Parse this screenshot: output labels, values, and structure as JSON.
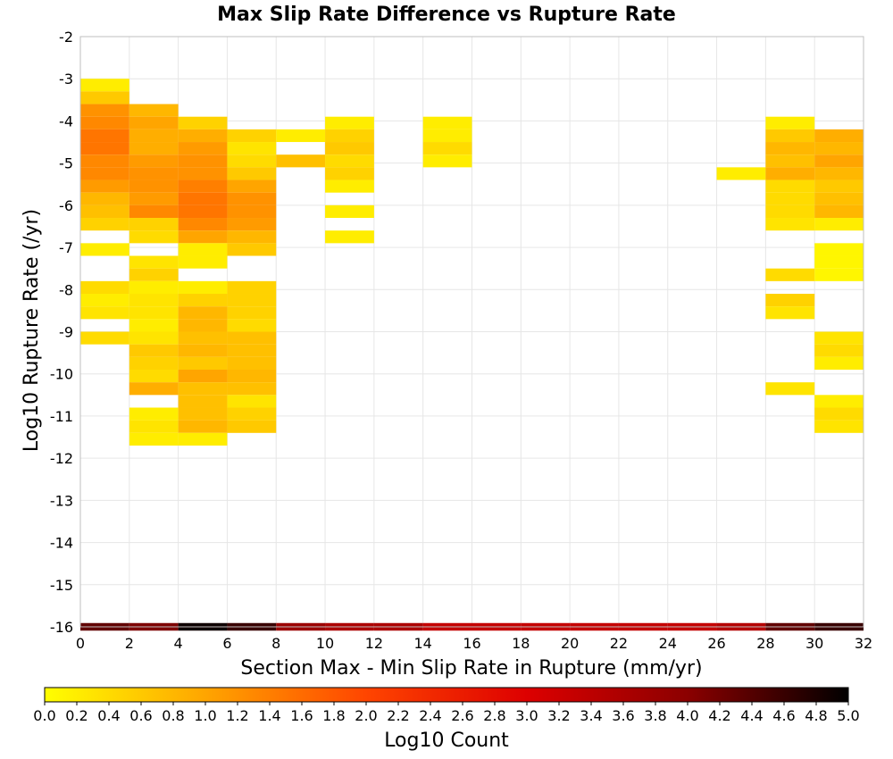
{
  "chart_data": {
    "type": "heatmap",
    "title": "Max Slip Rate Difference vs Rupture Rate",
    "xlabel": "Section Max - Min Slip Rate in Rupture (mm/yr)",
    "ylabel": "Log10 Rupture Rate (/yr)",
    "xlim": [
      0,
      32
    ],
    "ylim": [
      -16,
      -2
    ],
    "x_ticks": [
      "0",
      "2",
      "4",
      "6",
      "8",
      "10",
      "12",
      "14",
      "16",
      "18",
      "20",
      "22",
      "24",
      "26",
      "28",
      "30",
      "32"
    ],
    "y_ticks": [
      "-2",
      "-3",
      "-4",
      "-5",
      "-6",
      "-7",
      "-8",
      "-9",
      "-10",
      "-11",
      "-12",
      "-13",
      "-14",
      "-15",
      "-16"
    ],
    "x_bin_width": 2,
    "y_bin_height": 0.3,
    "grid": true,
    "colorbar": {
      "label": "Log10 Count",
      "range": [
        0,
        5
      ],
      "tick_labels": [
        "0.0",
        "0.2",
        "0.4",
        "0.6",
        "0.8",
        "1.0",
        "1.2",
        "1.4",
        "1.6",
        "1.8",
        "2.0",
        "2.2",
        "2.4",
        "2.6",
        "2.8",
        "3.0",
        "3.2",
        "3.4",
        "3.6",
        "3.8",
        "4.0",
        "4.2",
        "4.4",
        "4.6",
        "4.8",
        "5.0"
      ],
      "colors": [
        "#ffff00",
        "#ffa500",
        "#ff4500",
        "#dd0000",
        "#8b0000",
        "#000000"
      ],
      "placement": "bottom"
    },
    "cells": [
      {
        "x": 0,
        "y": -3.15,
        "v": 0.2
      },
      {
        "x": 0,
        "y": -3.45,
        "v": 0.6
      },
      {
        "x": 0,
        "y": -3.75,
        "v": 1.2
      },
      {
        "x": 0,
        "y": -4.05,
        "v": 1.3
      },
      {
        "x": 0,
        "y": -4.35,
        "v": 1.5
      },
      {
        "x": 0,
        "y": -4.65,
        "v": 1.5
      },
      {
        "x": 0,
        "y": -4.95,
        "v": 1.3
      },
      {
        "x": 0,
        "y": -5.25,
        "v": 1.3
      },
      {
        "x": 0,
        "y": -5.55,
        "v": 1.1
      },
      {
        "x": 0,
        "y": -5.85,
        "v": 0.8
      },
      {
        "x": 0,
        "y": -6.15,
        "v": 0.7
      },
      {
        "x": 0,
        "y": -6.45,
        "v": 0.5
      },
      {
        "x": 0,
        "y": -7.05,
        "v": 0.2
      },
      {
        "x": 0,
        "y": -7.95,
        "v": 0.4
      },
      {
        "x": 0,
        "y": -8.25,
        "v": 0.2
      },
      {
        "x": 0,
        "y": -8.55,
        "v": 0.3
      },
      {
        "x": 0,
        "y": -9.15,
        "v": 0.4
      },
      {
        "x": 2,
        "y": -3.75,
        "v": 0.8
      },
      {
        "x": 2,
        "y": -4.05,
        "v": 1.0
      },
      {
        "x": 2,
        "y": -4.35,
        "v": 0.9
      },
      {
        "x": 2,
        "y": -4.65,
        "v": 0.9
      },
      {
        "x": 2,
        "y": -4.95,
        "v": 1.1
      },
      {
        "x": 2,
        "y": -5.25,
        "v": 1.2
      },
      {
        "x": 2,
        "y": -5.55,
        "v": 1.2
      },
      {
        "x": 2,
        "y": -5.85,
        "v": 1.1
      },
      {
        "x": 2,
        "y": -6.15,
        "v": 1.3
      },
      {
        "x": 2,
        "y": -6.45,
        "v": 0.5
      },
      {
        "x": 2,
        "y": -6.75,
        "v": 0.4
      },
      {
        "x": 2,
        "y": -7.35,
        "v": 0.3
      },
      {
        "x": 2,
        "y": -7.65,
        "v": 0.5
      },
      {
        "x": 2,
        "y": -7.95,
        "v": 0.2
      },
      {
        "x": 2,
        "y": -8.25,
        "v": 0.3
      },
      {
        "x": 2,
        "y": -8.55,
        "v": 0.3
      },
      {
        "x": 2,
        "y": -8.85,
        "v": 0.2
      },
      {
        "x": 2,
        "y": -9.15,
        "v": 0.3
      },
      {
        "x": 2,
        "y": -9.45,
        "v": 0.6
      },
      {
        "x": 2,
        "y": -9.75,
        "v": 0.5
      },
      {
        "x": 2,
        "y": -10.05,
        "v": 0.4
      },
      {
        "x": 2,
        "y": -10.35,
        "v": 0.9
      },
      {
        "x": 2,
        "y": -10.95,
        "v": 0.2
      },
      {
        "x": 2,
        "y": -11.25,
        "v": 0.3
      },
      {
        "x": 2,
        "y": -11.55,
        "v": 0.2
      },
      {
        "x": 4,
        "y": -4.05,
        "v": 0.5
      },
      {
        "x": 4,
        "y": -4.35,
        "v": 0.9
      },
      {
        "x": 4,
        "y": -4.65,
        "v": 1.1
      },
      {
        "x": 4,
        "y": -4.95,
        "v": 1.2
      },
      {
        "x": 4,
        "y": -5.25,
        "v": 1.2
      },
      {
        "x": 4,
        "y": -5.55,
        "v": 1.4
      },
      {
        "x": 4,
        "y": -5.85,
        "v": 1.5
      },
      {
        "x": 4,
        "y": -6.15,
        "v": 1.5
      },
      {
        "x": 4,
        "y": -6.45,
        "v": 1.3
      },
      {
        "x": 4,
        "y": -6.75,
        "v": 1.0
      },
      {
        "x": 4,
        "y": -7.05,
        "v": 0.2
      },
      {
        "x": 4,
        "y": -7.35,
        "v": 0.2
      },
      {
        "x": 4,
        "y": -7.95,
        "v": 0.2
      },
      {
        "x": 4,
        "y": -8.25,
        "v": 0.5
      },
      {
        "x": 4,
        "y": -8.55,
        "v": 0.8
      },
      {
        "x": 4,
        "y": -8.85,
        "v": 0.8
      },
      {
        "x": 4,
        "y": -9.15,
        "v": 0.7
      },
      {
        "x": 4,
        "y": -9.45,
        "v": 0.8
      },
      {
        "x": 4,
        "y": -9.75,
        "v": 0.6
      },
      {
        "x": 4,
        "y": -10.05,
        "v": 1.0
      },
      {
        "x": 4,
        "y": -10.35,
        "v": 0.7
      },
      {
        "x": 4,
        "y": -10.65,
        "v": 0.7
      },
      {
        "x": 4,
        "y": -10.95,
        "v": 0.7
      },
      {
        "x": 4,
        "y": -11.25,
        "v": 0.8
      },
      {
        "x": 4,
        "y": -11.55,
        "v": 0.2
      },
      {
        "x": 6,
        "y": -4.35,
        "v": 0.5
      },
      {
        "x": 6,
        "y": -4.65,
        "v": 0.3
      },
      {
        "x": 6,
        "y": -4.95,
        "v": 0.4
      },
      {
        "x": 6,
        "y": -5.25,
        "v": 0.6
      },
      {
        "x": 6,
        "y": -5.55,
        "v": 1.0
      },
      {
        "x": 6,
        "y": -5.85,
        "v": 1.2
      },
      {
        "x": 6,
        "y": -6.15,
        "v": 1.2
      },
      {
        "x": 6,
        "y": -6.45,
        "v": 1.1
      },
      {
        "x": 6,
        "y": -6.75,
        "v": 0.8
      },
      {
        "x": 6,
        "y": -7.05,
        "v": 0.6
      },
      {
        "x": 6,
        "y": -7.95,
        "v": 0.5
      },
      {
        "x": 6,
        "y": -8.25,
        "v": 0.5
      },
      {
        "x": 6,
        "y": -8.55,
        "v": 0.5
      },
      {
        "x": 6,
        "y": -8.85,
        "v": 0.4
      },
      {
        "x": 6,
        "y": -9.15,
        "v": 0.7
      },
      {
        "x": 6,
        "y": -9.45,
        "v": 0.7
      },
      {
        "x": 6,
        "y": -9.75,
        "v": 0.7
      },
      {
        "x": 6,
        "y": -10.05,
        "v": 0.8
      },
      {
        "x": 6,
        "y": -10.35,
        "v": 0.7
      },
      {
        "x": 6,
        "y": -10.65,
        "v": 0.3
      },
      {
        "x": 6,
        "y": -10.95,
        "v": 0.5
      },
      {
        "x": 6,
        "y": -11.25,
        "v": 0.6
      },
      {
        "x": 8,
        "y": -4.35,
        "v": 0.2
      },
      {
        "x": 8,
        "y": -4.95,
        "v": 0.7
      },
      {
        "x": 10,
        "y": -4.05,
        "v": 0.2
      },
      {
        "x": 10,
        "y": -4.35,
        "v": 0.5
      },
      {
        "x": 10,
        "y": -4.65,
        "v": 0.6
      },
      {
        "x": 10,
        "y": -4.95,
        "v": 0.4
      },
      {
        "x": 10,
        "y": -5.25,
        "v": 0.5
      },
      {
        "x": 10,
        "y": -5.55,
        "v": 0.2
      },
      {
        "x": 10,
        "y": -6.15,
        "v": 0.2
      },
      {
        "x": 10,
        "y": -6.75,
        "v": 0.2
      },
      {
        "x": 14,
        "y": -4.05,
        "v": 0.2
      },
      {
        "x": 14,
        "y": -4.35,
        "v": 0.2
      },
      {
        "x": 14,
        "y": -4.65,
        "v": 0.4
      },
      {
        "x": 14,
        "y": -4.95,
        "v": 0.2
      },
      {
        "x": 26,
        "y": -5.25,
        "v": 0.2
      },
      {
        "x": 28,
        "y": -4.05,
        "v": 0.2
      },
      {
        "x": 28,
        "y": -4.35,
        "v": 0.6
      },
      {
        "x": 28,
        "y": -4.65,
        "v": 0.8
      },
      {
        "x": 28,
        "y": -4.95,
        "v": 0.7
      },
      {
        "x": 28,
        "y": -5.25,
        "v": 0.9
      },
      {
        "x": 28,
        "y": -5.55,
        "v": 0.4
      },
      {
        "x": 28,
        "y": -5.85,
        "v": 0.4
      },
      {
        "x": 28,
        "y": -6.15,
        "v": 0.4
      },
      {
        "x": 28,
        "y": -6.45,
        "v": 0.3
      },
      {
        "x": 28,
        "y": -7.65,
        "v": 0.4
      },
      {
        "x": 28,
        "y": -8.25,
        "v": 0.5
      },
      {
        "x": 28,
        "y": -8.55,
        "v": 0.3
      },
      {
        "x": 28,
        "y": -10.35,
        "v": 0.3
      },
      {
        "x": 30,
        "y": -4.35,
        "v": 0.9
      },
      {
        "x": 30,
        "y": -4.65,
        "v": 0.8
      },
      {
        "x": 30,
        "y": -4.95,
        "v": 1.0
      },
      {
        "x": 30,
        "y": -5.25,
        "v": 0.8
      },
      {
        "x": 30,
        "y": -5.55,
        "v": 0.6
      },
      {
        "x": 30,
        "y": -5.85,
        "v": 0.7
      },
      {
        "x": 30,
        "y": -6.15,
        "v": 0.8
      },
      {
        "x": 30,
        "y": -6.45,
        "v": 0.2
      },
      {
        "x": 30,
        "y": -7.05,
        "v": 0.1
      },
      {
        "x": 30,
        "y": -7.35,
        "v": 0.1
      },
      {
        "x": 30,
        "y": -7.65,
        "v": 0.1
      },
      {
        "x": 30,
        "y": -9.15,
        "v": 0.3
      },
      {
        "x": 30,
        "y": -9.45,
        "v": 0.4
      },
      {
        "x": 30,
        "y": -9.75,
        "v": 0.2
      },
      {
        "x": 30,
        "y": -10.65,
        "v": 0.2
      },
      {
        "x": 30,
        "y": -10.95,
        "v": 0.4
      },
      {
        "x": 30,
        "y": -11.25,
        "v": 0.3
      }
    ],
    "bottom_row": {
      "y": -16,
      "values": [
        4.3,
        4.1,
        4.9,
        4.6,
        3.8,
        3.6,
        3.6,
        3.3,
        3.3,
        3.3,
        3.3,
        3.3,
        3.3,
        3.5,
        4.3,
        4.6
      ]
    }
  }
}
